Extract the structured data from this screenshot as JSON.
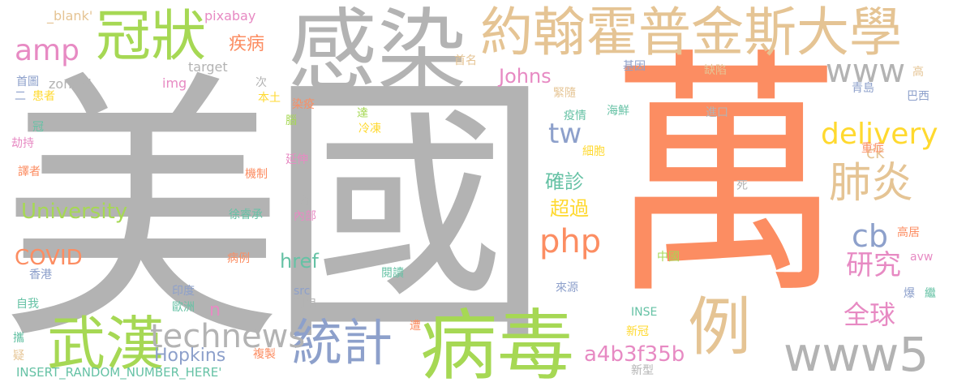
{
  "palette": {
    "gray": "#b3b3b3",
    "orange": "#fc8d62",
    "green": "#a6d854",
    "tan": "#e5c494",
    "blue": "#8da0cb",
    "pink": "#e78ac3",
    "yellow": "#ffd92f",
    "teal": "#66c2a5"
  },
  "words": [
    {
      "text": "美國",
      "color": "gray"
    },
    {
      "text": "萬",
      "color": "orange"
    },
    {
      "text": "感染",
      "color": "gray"
    },
    {
      "text": "約翰霍普金斯大學",
      "color": "tan"
    },
    {
      "text": "冠狀",
      "color": "green"
    },
    {
      "text": "病毒",
      "color": "green"
    },
    {
      "text": "例",
      "color": "tan"
    },
    {
      "text": "武漢",
      "color": "green"
    },
    {
      "text": "統計",
      "color": "blue"
    },
    {
      "text": "www5",
      "color": "gray"
    },
    {
      "text": "肺炎",
      "color": "tan"
    },
    {
      "text": "delivery",
      "color": "yellow"
    },
    {
      "text": "www",
      "color": "gray"
    },
    {
      "text": "amp",
      "color": "pink"
    },
    {
      "text": "technews",
      "color": "gray"
    },
    {
      "text": "php",
      "color": "orange"
    },
    {
      "text": "tw",
      "color": "blue"
    },
    {
      "text": "cb",
      "color": "blue"
    },
    {
      "text": "研究",
      "color": "pink"
    },
    {
      "text": "全球",
      "color": "pink"
    },
    {
      "text": "a4b3f35b",
      "color": "pink"
    },
    {
      "text": "University",
      "color": "green"
    },
    {
      "text": "COVID",
      "color": "orange"
    },
    {
      "text": "Hopkins",
      "color": "blue"
    },
    {
      "text": "href",
      "color": "teal"
    },
    {
      "text": "Johns",
      "color": "pink"
    },
    {
      "text": "確診",
      "color": "teal"
    },
    {
      "text": "超過",
      "color": "yellow"
    },
    {
      "text": "疾病",
      "color": "orange"
    },
    {
      "text": "ck",
      "color": "tan"
    },
    {
      "text": "n",
      "color": "pink"
    },
    {
      "text": "a",
      "color": "gray"
    },
    {
      "text": "_blank'",
      "color": "tan"
    },
    {
      "text": "pixabay",
      "color": "pink"
    },
    {
      "text": "target",
      "color": "gray"
    },
    {
      "text": "zoneid",
      "color": "gray"
    },
    {
      "text": "img",
      "color": "pink"
    },
    {
      "text": "首圖",
      "color": "blue"
    },
    {
      "text": "首名",
      "color": "tan"
    },
    {
      "text": "次",
      "color": "gray"
    },
    {
      "text": "二",
      "color": "blue"
    },
    {
      "text": "患者",
      "color": "yellow"
    },
    {
      "text": "本土",
      "color": "yellow"
    },
    {
      "text": "染疫",
      "color": "orange"
    },
    {
      "text": "冠",
      "color": "teal"
    },
    {
      "text": "劫持",
      "color": "pink"
    },
    {
      "text": "腦",
      "color": "green"
    },
    {
      "text": "譯者",
      "color": "orange"
    },
    {
      "text": "機制",
      "color": "orange"
    },
    {
      "text": "延伸",
      "color": "pink"
    },
    {
      "text": "徐睿承",
      "color": "teal"
    },
    {
      "text": "內部",
      "color": "pink"
    },
    {
      "text": "香港",
      "color": "blue"
    },
    {
      "text": "病例",
      "color": "orange"
    },
    {
      "text": "自我",
      "color": "teal"
    },
    {
      "text": "印度",
      "color": "blue"
    },
    {
      "text": "歐洲",
      "color": "teal"
    },
    {
      "text": "src",
      "color": "blue"
    },
    {
      "text": "利用",
      "color": "gray"
    },
    {
      "text": "攜",
      "color": "teal"
    },
    {
      "text": "疑",
      "color": "tan"
    },
    {
      "text": "複製",
      "color": "orange"
    },
    {
      "text": "INSERT_RANDOM_NUMBER_HERE'",
      "color": "teal"
    },
    {
      "text": "遭",
      "color": "orange"
    },
    {
      "text": "閱讀",
      "color": "teal"
    },
    {
      "text": "達",
      "color": "green"
    },
    {
      "text": "冷凍",
      "color": "yellow"
    },
    {
      "text": "緊隨",
      "color": "tan"
    },
    {
      "text": "疫情",
      "color": "teal"
    },
    {
      "text": "海鮮",
      "color": "teal"
    },
    {
      "text": "基因",
      "color": "blue"
    },
    {
      "text": "缺陷",
      "color": "tan"
    },
    {
      "text": "進口",
      "color": "gray"
    },
    {
      "text": "細胞",
      "color": "yellow"
    },
    {
      "text": "青島",
      "color": "blue"
    },
    {
      "text": "高",
      "color": "tan"
    },
    {
      "text": "巴西",
      "color": "blue"
    },
    {
      "text": "重症",
      "color": "orange"
    },
    {
      "text": "死",
      "color": "gray"
    },
    {
      "text": "高居",
      "color": "orange"
    },
    {
      "text": "中國",
      "color": "green"
    },
    {
      "text": "avw",
      "color": "pink"
    },
    {
      "text": "來源",
      "color": "blue"
    },
    {
      "text": "爆",
      "color": "blue"
    },
    {
      "text": "繼",
      "color": "teal"
    },
    {
      "text": "INSE",
      "color": "teal"
    },
    {
      "text": "新冠",
      "color": "yellow"
    },
    {
      "text": "新型",
      "color": "gray"
    }
  ]
}
